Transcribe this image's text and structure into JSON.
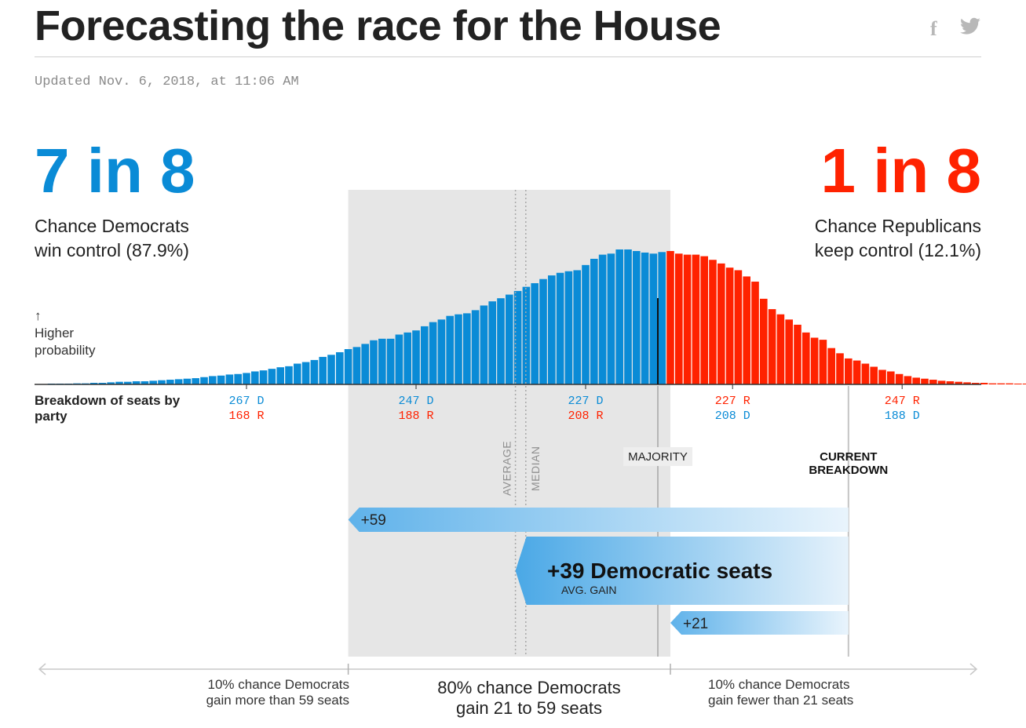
{
  "header": {
    "title": "Forecasting the race for the House",
    "updated": "Updated Nov. 6, 2018, at 11:06 AM",
    "facebook_icon": "facebook-icon",
    "twitter_icon": "twitter-icon"
  },
  "odds": {
    "dem_big": "7 in 8",
    "dem_line1": "Chance Democrats",
    "dem_line2": "win control (87.9%)",
    "rep_big": "1 in 8",
    "rep_line1": "Chance Republicans",
    "rep_line2": "keep control (12.1%)"
  },
  "labels": {
    "arrow": "↑",
    "higher_line1": "Higher",
    "higher_line2": "probability",
    "breakdown_line1": "Breakdown of seats by",
    "breakdown_line2": "party",
    "average": "AVERAGE",
    "median": "MEDIAN",
    "majority": "MAJORITY",
    "current_line1": "CURRENT",
    "current_line2": "BREAKDOWN",
    "gain_high": "+59",
    "gain_avg": "+39 Democratic seats",
    "gain_avg_sub": "AVG. GAIN",
    "gain_low": "+21",
    "foot_left_1": "10% chance Democrats",
    "foot_left_2": "gain more than 59 seats",
    "foot_mid_1": "80% chance Democrats",
    "foot_mid_2": "gain 21 to 59 seats",
    "foot_right_1": "10% chance Democrats",
    "foot_right_2": "gain fewer than 21 seats"
  },
  "colors": {
    "democrat": "#0a8bd6",
    "republican": "#ff2200",
    "band": "#e6e6e6",
    "text": "#222222"
  },
  "chart_data": {
    "type": "bar",
    "x_axis": "Democratic seats",
    "x_direction": "decreasing left to right",
    "majority_seats": 218,
    "current_dem_seats": 196,
    "range_80pct": [
      255,
      217
    ],
    "average_dem_seats": 235,
    "median_dem_seats": 234,
    "ticks": [
      {
        "top": "267 D",
        "bottom": "168 R",
        "top_party": "dem",
        "bottom_party": "rep",
        "dem_seats": 267
      },
      {
        "top": "247 D",
        "bottom": "188 R",
        "top_party": "dem",
        "bottom_party": "rep",
        "dem_seats": 247
      },
      {
        "top": "227 D",
        "bottom": "208 R",
        "top_party": "dem",
        "bottom_party": "rep",
        "dem_seats": 227
      },
      {
        "top": "227 R",
        "bottom": "208 D",
        "top_party": "rep",
        "bottom_party": "dem",
        "dem_seats": 208
      },
      {
        "top": "247 R",
        "bottom": "188 D",
        "top_party": "rep",
        "bottom_party": "dem",
        "dem_seats": 188
      }
    ],
    "dem_seats_start": 290,
    "probabilities": [
      0.01,
      0.01,
      0.01,
      0.02,
      0.02,
      0.03,
      0.03,
      0.04,
      0.05,
      0.05,
      0.06,
      0.06,
      0.07,
      0.08,
      0.09,
      0.1,
      0.11,
      0.12,
      0.14,
      0.16,
      0.17,
      0.19,
      0.2,
      0.22,
      0.25,
      0.27,
      0.3,
      0.33,
      0.35,
      0.4,
      0.43,
      0.47,
      0.53,
      0.57,
      0.62,
      0.68,
      0.72,
      0.78,
      0.85,
      0.88,
      0.88,
      0.96,
      1.0,
      1.04,
      1.12,
      1.2,
      1.25,
      1.32,
      1.35,
      1.37,
      1.43,
      1.52,
      1.6,
      1.66,
      1.73,
      1.8,
      1.88,
      1.95,
      2.03,
      2.1,
      2.15,
      2.18,
      2.2,
      2.3,
      2.42,
      2.5,
      2.52,
      2.6,
      2.6,
      2.57,
      2.54,
      2.52,
      2.55,
      2.57,
      2.52,
      2.5,
      2.5,
      2.47,
      2.4,
      2.33,
      2.25,
      2.2,
      2.08,
      1.98,
      1.65,
      1.45,
      1.35,
      1.25,
      1.15,
      1.0,
      0.9,
      0.86,
      0.7,
      0.6,
      0.5,
      0.46,
      0.4,
      0.34,
      0.28,
      0.25,
      0.2,
      0.16,
      0.13,
      0.11,
      0.09,
      0.07,
      0.06,
      0.05,
      0.04,
      0.03,
      0.03,
      0.02,
      0.02,
      0.02,
      0.01,
      0.01,
      0.01,
      0.01,
      0.01
    ],
    "gains": [
      {
        "label": "+59",
        "dem_seats": 255
      },
      {
        "label": "+39 Democratic seats",
        "sublabel": "AVG. GAIN",
        "dem_seats": 235
      },
      {
        "label": "+21",
        "dem_seats": 217
      }
    ]
  }
}
